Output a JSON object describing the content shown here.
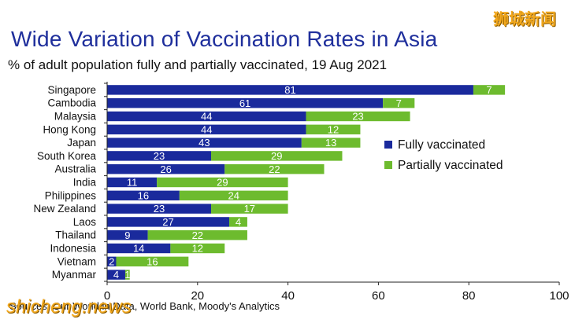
{
  "watermark_top": "狮城新闻",
  "watermark_bottom": "shicheng.news",
  "chart_data": {
    "type": "bar",
    "orientation": "horizontal",
    "stacked": true,
    "title": "Wide Variation of Vaccination Rates in Asia",
    "subtitle": "% of adult population fully and partially vaccinated, 19 Aug 2021",
    "source": "Sources: Our World in Data, World Bank, Moody's Analytics",
    "categories": [
      "Singapore",
      "Cambodia",
      "Malaysia",
      "Hong Kong",
      "Japan",
      "South Korea",
      "Australia",
      "India",
      "Philippines",
      "New Zealand",
      "Laos",
      "Thailand",
      "Indonesia",
      "Vietnam",
      "Myanmar"
    ],
    "series": [
      {
        "name": "Fully vaccinated",
        "color": "#1a2a9c",
        "values": [
          81,
          61,
          44,
          44,
          43,
          23,
          26,
          11,
          16,
          23,
          27,
          9,
          14,
          2,
          4
        ]
      },
      {
        "name": "Partially vaccinated",
        "color": "#6dbb2e",
        "values": [
          7,
          7,
          23,
          12,
          13,
          29,
          22,
          29,
          24,
          17,
          4,
          22,
          12,
          16,
          1
        ]
      }
    ],
    "x_ticks": [
      0,
      20,
      40,
      60,
      80,
      100
    ],
    "xlim": [
      0,
      100
    ],
    "grid": false,
    "legend_position": "right"
  }
}
